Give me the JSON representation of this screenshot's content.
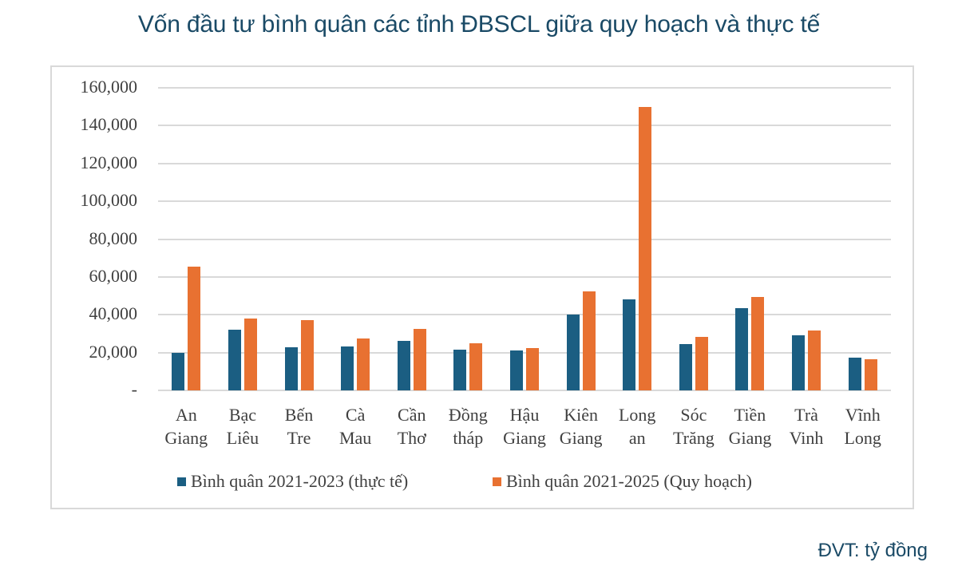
{
  "title": "Vốn đầu tư bình quân các tỉnh ĐBSCL giữa quy hoạch và thực tế",
  "unit_note": "ĐVT: tỷ đồng",
  "colors": {
    "actual": "#1b5e82",
    "planned": "#e87131",
    "grid": "#d9d9d9",
    "title": "#1a4a66"
  },
  "chart_data": {
    "type": "bar",
    "title": "Vốn đầu tư bình quân các tỉnh ĐBSCL giữa quy hoạch và thực tế",
    "xlabel": "",
    "ylabel": "",
    "unit": "tỷ đồng",
    "ylim": [
      0,
      160000
    ],
    "yticks": [
      0,
      20000,
      40000,
      60000,
      80000,
      100000,
      120000,
      140000,
      160000
    ],
    "ytick_labels": [
      "-",
      "20,000",
      "40,000",
      "60,000",
      "80,000",
      "100,000",
      "120,000",
      "140,000",
      "160,000"
    ],
    "grid": true,
    "legend_position": "bottom",
    "categories": [
      "An Giang",
      "Bạc Liêu",
      "Bến Tre",
      "Cà Mau",
      "Cần Thơ",
      "Đồng tháp",
      "Hậu Giang",
      "Kiên Giang",
      "Long an",
      "Sóc Trăng",
      "Tiền Giang",
      "Trà Vinh",
      "Vĩnh Long"
    ],
    "category_lines": [
      [
        "An",
        "Giang"
      ],
      [
        "Bạc",
        "Liêu"
      ],
      [
        "Bến",
        "Tre"
      ],
      [
        "Cà",
        "Mau"
      ],
      [
        "Cần",
        "Thơ"
      ],
      [
        "Đồng",
        "tháp"
      ],
      [
        "Hậu",
        "Giang"
      ],
      [
        "Kiên",
        "Giang"
      ],
      [
        "Long",
        "an"
      ],
      [
        "Sóc",
        "Trăng"
      ],
      [
        "Tiền",
        "Giang"
      ],
      [
        "Trà",
        "Vinh"
      ],
      [
        "Vĩnh",
        "Long"
      ]
    ],
    "series": [
      {
        "name": "Bình quân 2021-2023 (thực tế)",
        "color": "#1b5e82",
        "values": [
          19800,
          32000,
          22800,
          23100,
          26200,
          21600,
          21200,
          40000,
          48000,
          24600,
          43500,
          29100,
          17200
        ]
      },
      {
        "name": "Bình quân 2021-2025 (Quy hoạch)",
        "color": "#e87131",
        "values": [
          65500,
          38000,
          37000,
          27300,
          32500,
          25000,
          22300,
          52300,
          150000,
          28200,
          49300,
          31800,
          16500
        ]
      }
    ]
  }
}
